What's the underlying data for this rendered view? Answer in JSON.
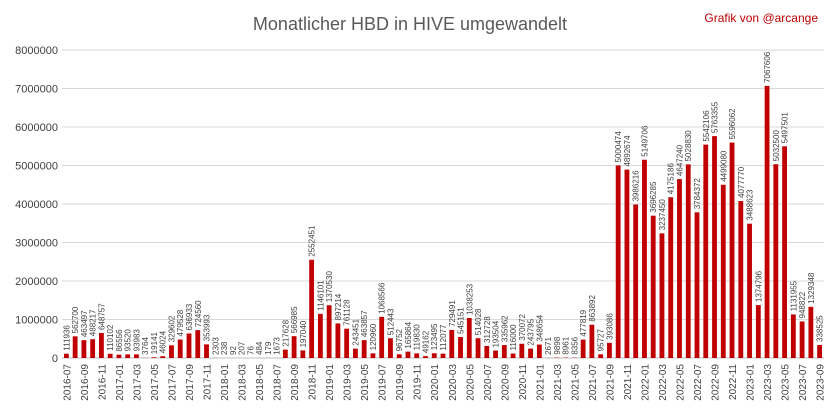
{
  "chart_data": {
    "type": "bar",
    "title": "Monatlicher HBD in HIVE umgewandelt",
    "credit": "Grafik von @arcange",
    "xlabel": "",
    "ylabel": "",
    "ylim": [
      0,
      8000000
    ],
    "yticks": [
      0,
      1000000,
      2000000,
      3000000,
      4000000,
      5000000,
      6000000,
      7000000,
      8000000
    ],
    "ytick_labels": [
      "0",
      "1000000",
      "2000000",
      "3000000",
      "4000000",
      "5000000",
      "6000000",
      "7000000",
      "8000000"
    ],
    "grid": true,
    "bar_color": "#c00000",
    "categories": [
      "2016-07",
      "2016-08",
      "2016-09",
      "2016-10",
      "2016-11",
      "2016-12",
      "2017-01",
      "2017-02",
      "2017-03",
      "2017-04",
      "2017-05",
      "2017-06",
      "2017-07",
      "2017-08",
      "2017-09",
      "2017-10",
      "2017-11",
      "2017-12",
      "2018-01",
      "2018-02",
      "2018-03",
      "2018-04",
      "2018-05",
      "2018-06",
      "2018-07",
      "2018-08",
      "2018-09",
      "2018-10",
      "2018-11",
      "2018-12",
      "2019-01",
      "2019-02",
      "2019-03",
      "2019-04",
      "2019-05",
      "2019-06",
      "2019-07",
      "2019-08",
      "2019-09",
      "2019-10",
      "2019-11",
      "2019-12",
      "2020-01",
      "2020-02",
      "2020-03",
      "2020-04",
      "2020-05",
      "2020-06",
      "2020-07",
      "2020-08",
      "2020-09",
      "2020-10",
      "2020-11",
      "2020-12",
      "2021-01",
      "2021-02",
      "2021-03",
      "2021-04",
      "2021-05",
      "2021-06",
      "2021-07",
      "2021-08",
      "2021-09",
      "2021-10",
      "2021-11",
      "2021-12",
      "2022-01",
      "2022-02",
      "2022-03",
      "2022-04",
      "2022-05",
      "2022-06",
      "2022-07",
      "2022-08",
      "2022-09",
      "2022-10",
      "2022-11",
      "2022-12",
      "2023-01",
      "2023-02",
      "2023-03",
      "2023-04",
      "2023-05",
      "2023-06",
      "2023-07",
      "2023-08",
      "2023-09"
    ],
    "values": [
      111936,
      562700,
      463497,
      488217,
      648757,
      110102,
      86556,
      93520,
      93983,
      3764,
      19141,
      46024,
      329602,
      479528,
      636933,
      724560,
      353993,
      2303,
      238,
      92,
      207,
      76,
      484,
      179,
      1673,
      217628,
      566985,
      197040,
      2552451,
      1146101,
      1370530,
      897214,
      761128,
      243451,
      463857,
      120960,
      1068566,
      512443,
      96752,
      165864,
      119830,
      49162,
      123495,
      112077,
      729491,
      545151,
      1038253,
      514028,
      312728,
      193504,
      335962,
      116000,
      370072,
      243795,
      348654,
      2671,
      9898,
      8961,
      8356,
      477819,
      863892,
      95727,
      393086,
      5000474,
      4892674,
      3986216,
      5149706,
      3696285,
      3237450,
      4175186,
      4647240,
      5028830,
      3784372,
      5542106,
      5763355,
      4499080,
      5596062,
      4077770,
      3488623,
      1374796,
      7067606,
      5032500,
      5497501,
      1131955,
      948822,
      1329348,
      338525
    ],
    "data_labels": [
      "111936",
      "562700",
      "463497",
      "488217",
      "648757",
      "110102",
      "86556",
      "93520",
      "93983",
      "3764",
      "19141",
      "46024",
      "329602",
      "479528",
      "636933",
      "724560",
      "353993",
      "2303",
      "238",
      "92",
      "207",
      "76",
      "484",
      "179",
      "1673",
      "217628",
      "566985",
      "197040",
      "2552451",
      "1146101",
      "1370530",
      "897214",
      "761128",
      "243451",
      "463857",
      "120960",
      "1068566",
      "512443",
      "96752",
      "165864",
      "119830",
      "49162",
      "123495",
      "112077",
      "729491",
      "545151",
      "1038253",
      "514028",
      "312728",
      "193504",
      "335962",
      "116000",
      "370072",
      "243795",
      "348654",
      "2671",
      "9898",
      "8961",
      "8356",
      "477819",
      "863892",
      "95727",
      "393086",
      "5000474",
      "4892674",
      "3986216",
      "5149706",
      "3696285",
      "3237450",
      "4175186",
      "4647240",
      "5028830",
      "3784372",
      "5542106",
      "5763355",
      "4499080",
      "5596062",
      "4077770",
      "3488623",
      "1374796",
      "7067606",
      "5032500",
      "5497501",
      "1131955",
      "948822",
      "1329348",
      "338525"
    ],
    "x_tick_labels": [
      "2016-07",
      "2016-09",
      "2016-11",
      "2017-01",
      "2017-03",
      "2017-05",
      "2017-07",
      "2017-09",
      "2017-11",
      "2018-01",
      "2018-03",
      "2018-05",
      "2018-07",
      "2018-09",
      "2018-11",
      "2019-01",
      "2019-03",
      "2019-05",
      "2019-07",
      "2019-09",
      "2019-11",
      "2020-01",
      "2020-03",
      "2020-05",
      "2020-07",
      "2020-09",
      "2020-11",
      "2021-01",
      "2021-03",
      "2021-05",
      "2021-07",
      "2021-09",
      "2021-11",
      "2022-01",
      "2022-03",
      "2022-05",
      "2022-07",
      "2022-09",
      "2022-11",
      "2023-01",
      "2023-03",
      "2023-05",
      "2023-07",
      "2023-09"
    ]
  }
}
